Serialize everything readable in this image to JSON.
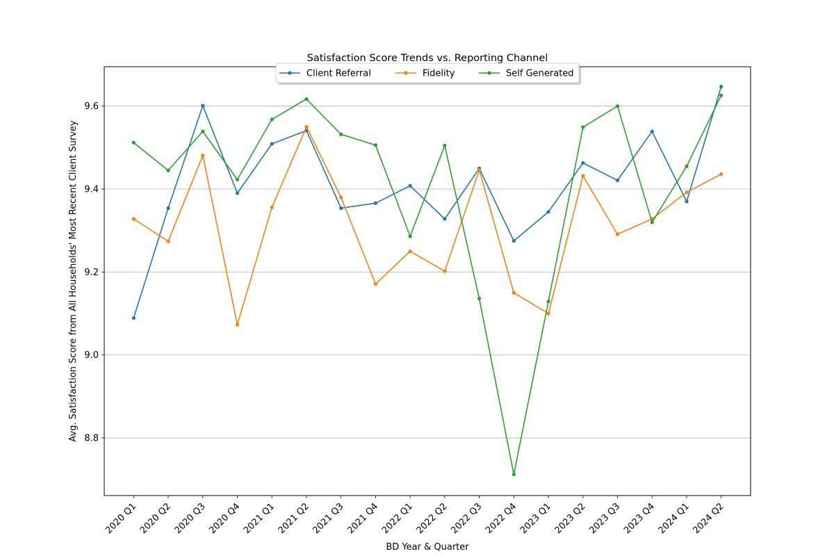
{
  "chart_data": {
    "type": "line",
    "title": "Satisfaction Score Trends vs. Reporting Channel",
    "xlabel": "BD Year & Quarter",
    "ylabel": "Avg. Satisfaction Score from All Households' Most Recent Client Survey",
    "categories": [
      "2020 Q1",
      "2020 Q2",
      "2020 Q3",
      "2020 Q4",
      "2021 Q1",
      "2021 Q2",
      "2021 Q3",
      "2021 Q4",
      "2022 Q1",
      "2022 Q2",
      "2022 Q3",
      "2022 Q4",
      "2023 Q1",
      "2023 Q2",
      "2023 Q3",
      "2023 Q4",
      "2024 Q1",
      "2024 Q2"
    ],
    "ylim": [
      8.661,
      9.695
    ],
    "yticks": [
      8.8,
      9.0,
      9.2,
      9.4,
      9.6
    ],
    "ytick_labels": [
      "8.8",
      "9.0",
      "9.2",
      "9.4",
      "9.6"
    ],
    "grid": "horizontal",
    "legend_position": "top-center",
    "series": [
      {
        "name": "Client Referral",
        "color": "#1f77b4",
        "values": [
          9.089,
          9.354,
          9.601,
          9.39,
          9.509,
          9.541,
          9.354,
          9.366,
          9.408,
          9.328,
          9.45,
          9.275,
          9.345,
          9.463,
          9.421,
          9.539,
          9.37,
          9.647
        ]
      },
      {
        "name": "Fidelity",
        "color": "#ff7f0e",
        "values": [
          9.328,
          9.274,
          9.481,
          9.073,
          9.356,
          9.55,
          9.38,
          9.171,
          9.25,
          9.202,
          9.446,
          9.15,
          9.1,
          9.432,
          9.291,
          9.328,
          9.392,
          9.436
        ]
      },
      {
        "name": "Self Generated",
        "color": "#2ca02c",
        "values": [
          9.512,
          9.445,
          9.539,
          9.423,
          9.568,
          9.617,
          9.532,
          9.506,
          9.286,
          9.505,
          9.136,
          8.712,
          9.129,
          9.549,
          9.6,
          9.32,
          9.455,
          9.626
        ]
      }
    ]
  }
}
